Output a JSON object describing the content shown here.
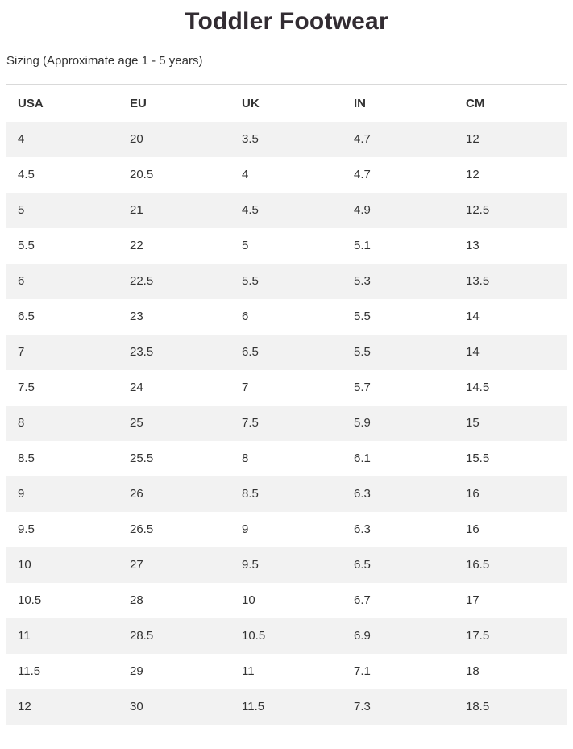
{
  "page": {
    "title": "Toddler Footwear",
    "subtitle": "Sizing (Approximate age 1 - 5 years)"
  },
  "table": {
    "columns": [
      "USA",
      "EU",
      "UK",
      "IN",
      "CM"
    ],
    "rows": [
      [
        "4",
        "20",
        "3.5",
        "4.7",
        "12"
      ],
      [
        "4.5",
        "20.5",
        "4",
        "4.7",
        "12"
      ],
      [
        "5",
        "21",
        "4.5",
        "4.9",
        "12.5"
      ],
      [
        "5.5",
        "22",
        "5",
        "5.1",
        "13"
      ],
      [
        "6",
        "22.5",
        "5.5",
        "5.3",
        "13.5"
      ],
      [
        "6.5",
        "23",
        "6",
        "5.5",
        "14"
      ],
      [
        "7",
        "23.5",
        "6.5",
        "5.5",
        "14"
      ],
      [
        "7.5",
        "24",
        "7",
        "5.7",
        "14.5"
      ],
      [
        "8",
        "25",
        "7.5",
        "5.9",
        "15"
      ],
      [
        "8.5",
        "25.5",
        "8",
        "6.1",
        "15.5"
      ],
      [
        "9",
        "26",
        "8.5",
        "6.3",
        "16"
      ],
      [
        "9.5",
        "26.5",
        "9",
        "6.3",
        "16"
      ],
      [
        "10",
        "27",
        "9.5",
        "6.5",
        "16.5"
      ],
      [
        "10.5",
        "28",
        "10",
        "6.7",
        "17"
      ],
      [
        "11",
        "28.5",
        "10.5",
        "6.9",
        "17.5"
      ],
      [
        "11.5",
        "29",
        "11",
        "7.1",
        "18"
      ],
      [
        "12",
        "30",
        "11.5",
        "7.3",
        "18.5"
      ]
    ]
  },
  "colors": {
    "stripe_row_background": "#f2f2f2",
    "table_top_border": "#d9d9d9",
    "text": "#333333",
    "title_text": "#322c32",
    "page_background": "#ffffff"
  }
}
